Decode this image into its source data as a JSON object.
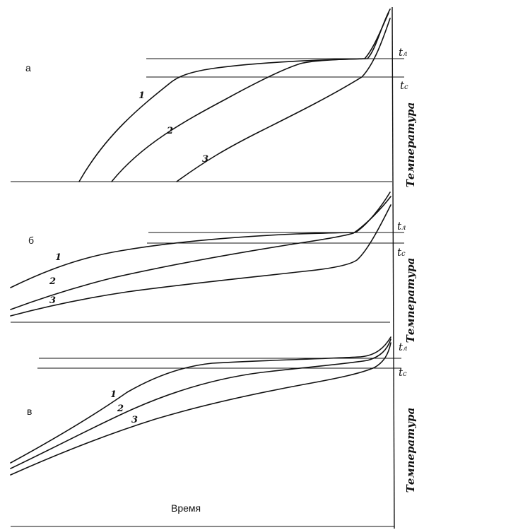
{
  "chart_data": {
    "type": "line",
    "panels": [
      {
        "label": "а",
        "ylabel": "Температура",
        "reference_lines": [
          {
            "base": "t",
            "sub": "л"
          },
          {
            "base": "t",
            "sub": "с"
          }
        ],
        "series": [
          {
            "name": "1"
          },
          {
            "name": "2"
          },
          {
            "name": "3"
          }
        ]
      },
      {
        "label": "б",
        "ylabel": "Температура",
        "reference_lines": [
          {
            "base": "t",
            "sub": "л"
          },
          {
            "base": "t",
            "sub": "с"
          }
        ],
        "series": [
          {
            "name": "1"
          },
          {
            "name": "2"
          },
          {
            "name": "3"
          }
        ]
      },
      {
        "label": "в",
        "ylabel": "Температура",
        "reference_lines": [
          {
            "base": "t",
            "sub": "л"
          },
          {
            "base": "t",
            "sub": "с"
          }
        ],
        "series": [
          {
            "name": "1"
          },
          {
            "name": "2"
          },
          {
            "name": "3"
          }
        ]
      }
    ],
    "xlabel": "Время"
  }
}
